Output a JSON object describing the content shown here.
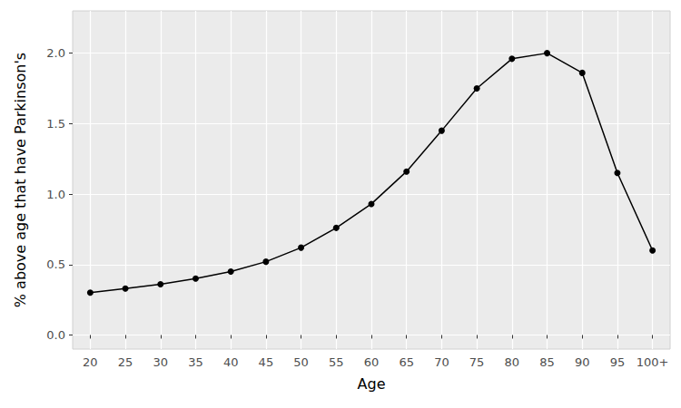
{
  "chart_data": {
    "type": "line",
    "x_label": "Age",
    "y_label": "% above age that have Parkinson's",
    "categories": [
      "20",
      "25",
      "30",
      "35",
      "40",
      "45",
      "50",
      "55",
      "60",
      "65",
      "70",
      "75",
      "80",
      "85",
      "90",
      "95",
      "100+"
    ],
    "values": [
      0.3,
      0.33,
      0.36,
      0.4,
      0.45,
      0.52,
      0.62,
      0.76,
      0.93,
      1.16,
      1.45,
      1.75,
      1.96,
      2.0,
      1.86,
      1.15,
      0.6
    ],
    "color": "#000000",
    "marker": "circle",
    "line_style": "solid",
    "ylim": [
      -0.1,
      2.3
    ],
    "yticks": [
      {
        "value": 0,
        "label": "0.0"
      },
      {
        "value": 0.5,
        "label": "0.5"
      },
      {
        "value": 1,
        "label": "1.0"
      },
      {
        "value": 1.5,
        "label": "1.5"
      },
      {
        "value": 2,
        "label": "2.0"
      }
    ],
    "grid": true
  }
}
